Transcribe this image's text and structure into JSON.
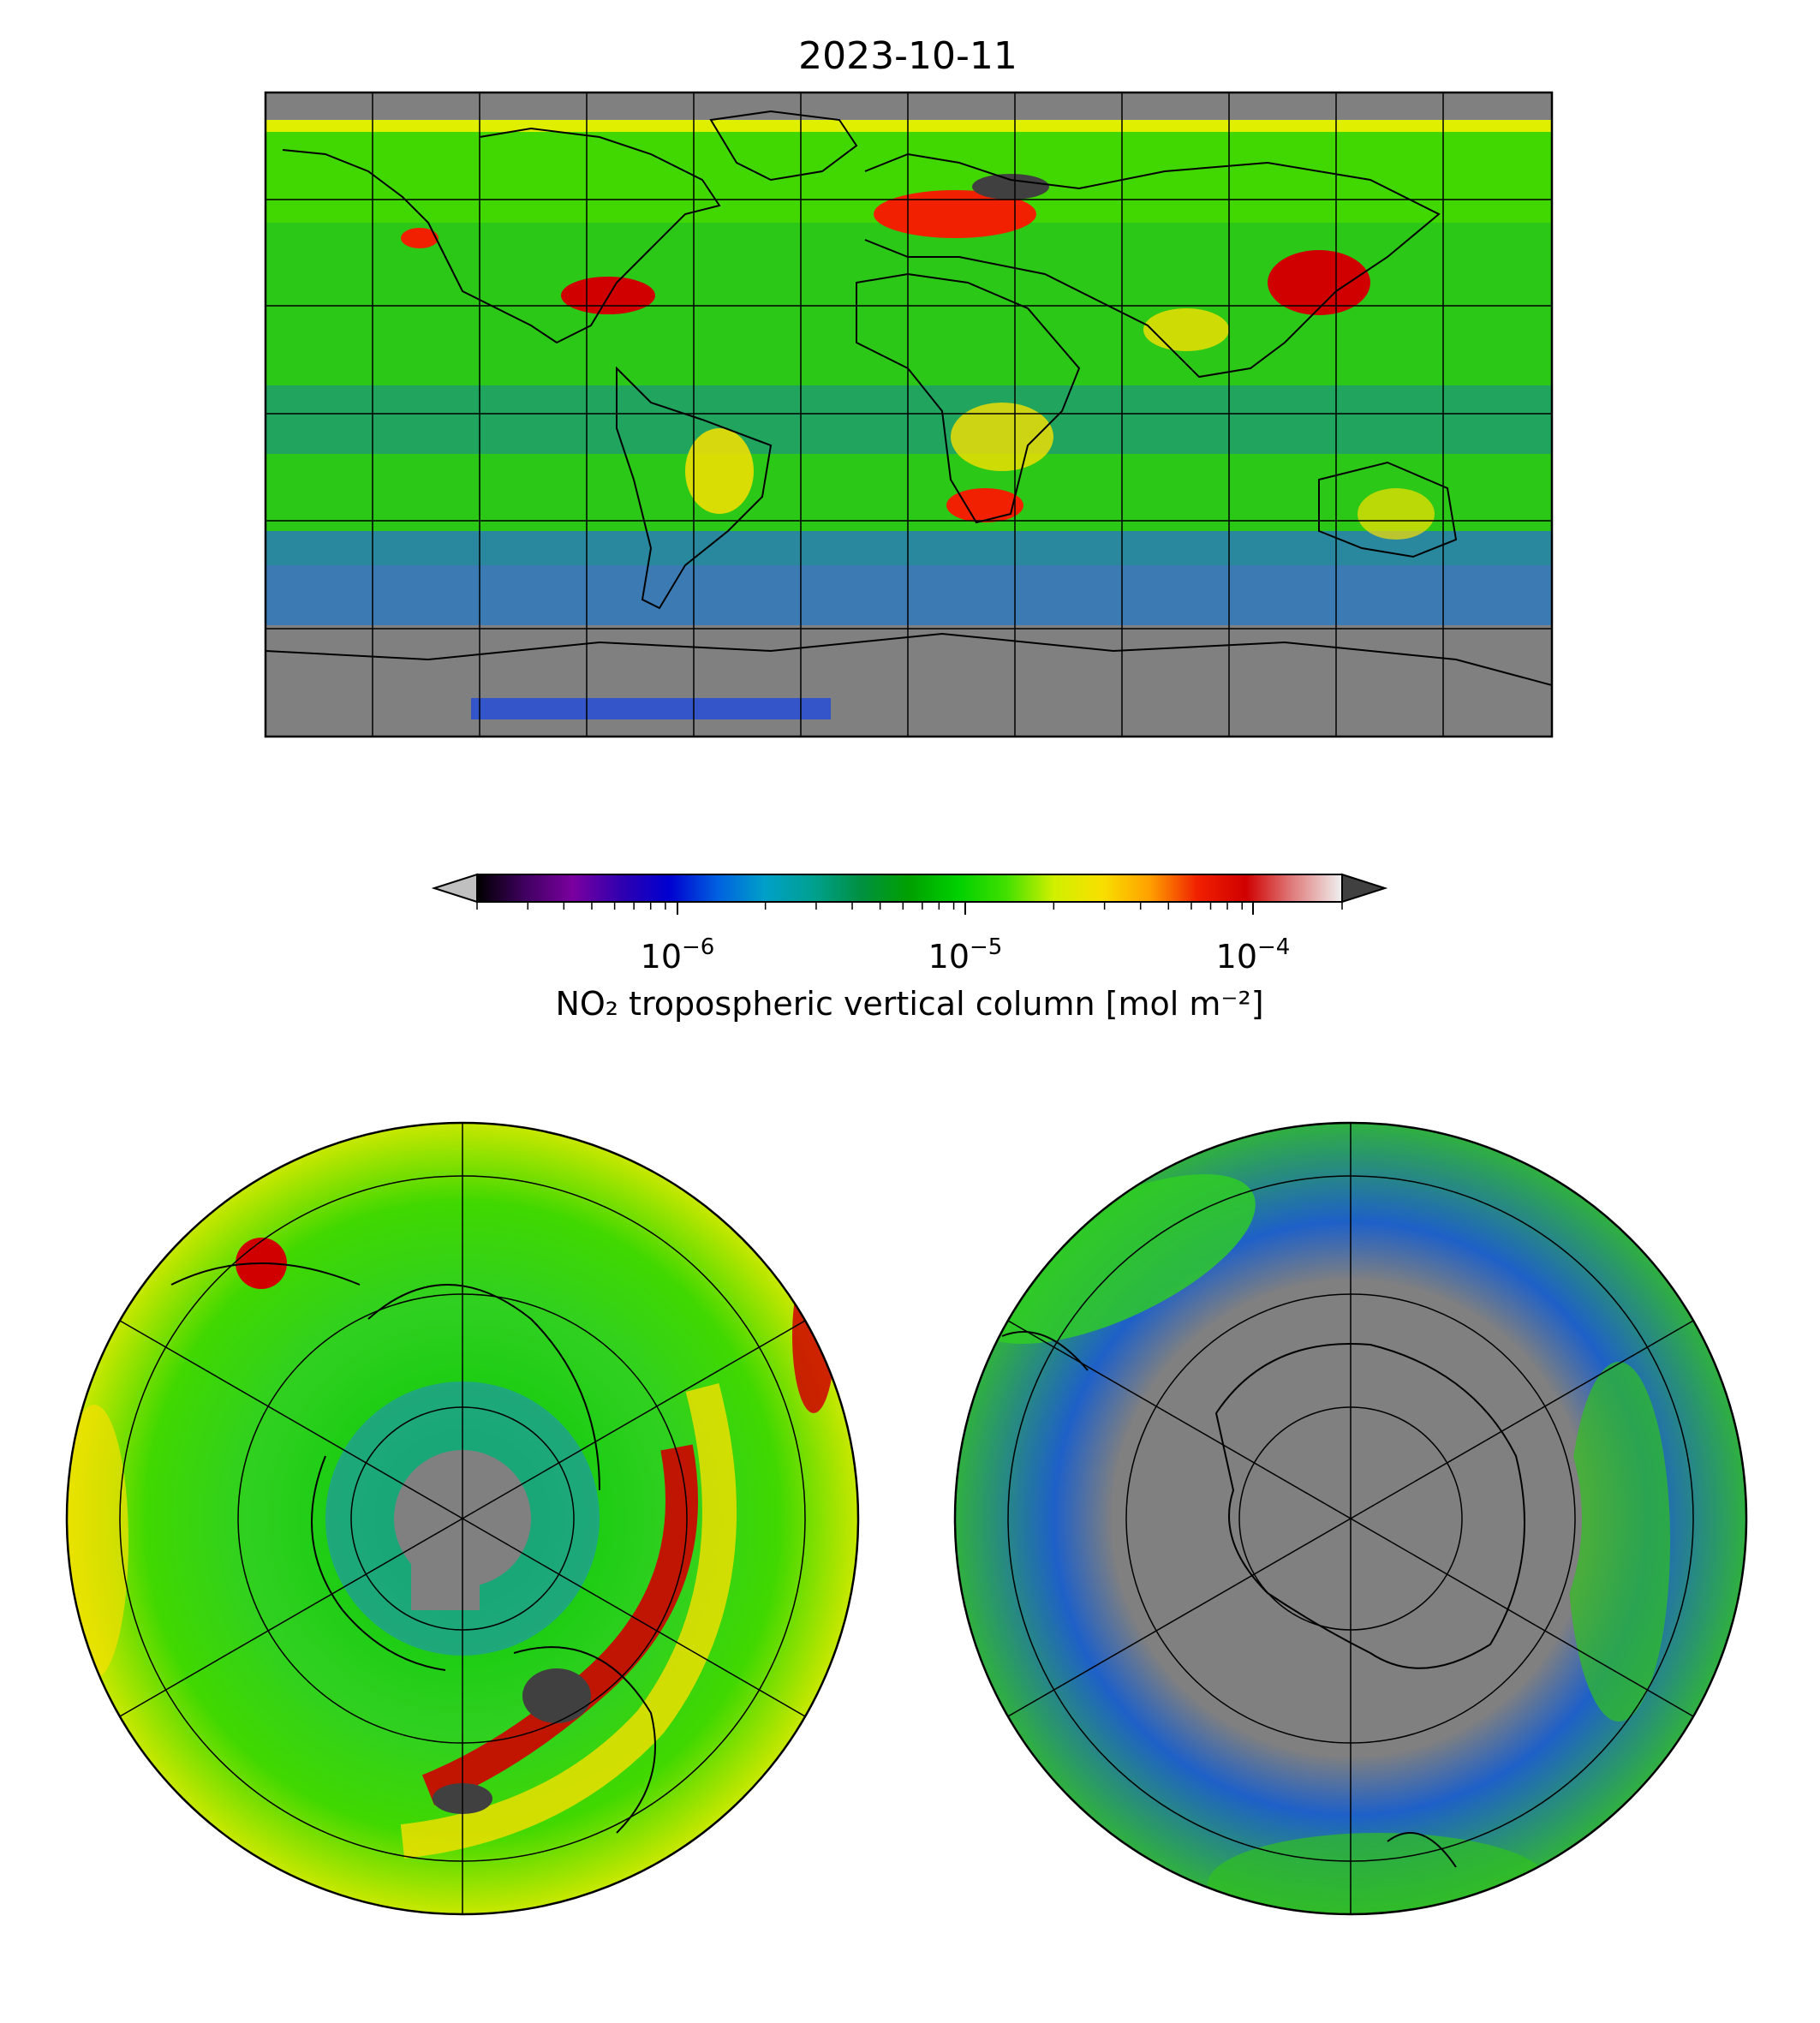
{
  "title": "2023-10-11",
  "colorbar": {
    "label": "NO₂ tropospheric vertical column [mol m⁻²]",
    "scale": "log",
    "range": [
      "2e-7",
      "2e-4"
    ],
    "ticks": [
      {
        "base": "10",
        "exp": "−6"
      },
      {
        "base": "10",
        "exp": "−5"
      },
      {
        "base": "10",
        "exp": "−4"
      }
    ],
    "extend_low_color": "#c0c0c0",
    "extend_high_color": "#404040",
    "stops": [
      "#000000",
      "#400060",
      "#7a00a0",
      "#3000b0",
      "#0000d0",
      "#0060e0",
      "#00a0c8",
      "#00a090",
      "#009040",
      "#00a000",
      "#00d000",
      "#40e000",
      "#d0f000",
      "#f8e000",
      "#ffa000",
      "#f02000",
      "#d00000",
      "#e08080",
      "#f0f0f0"
    ]
  },
  "maps": {
    "global_projection": "equirectangular",
    "north_polar_projection": "north polar stereographic",
    "south_polar_projection": "south polar stereographic",
    "nodata_color": "#808080",
    "gridlines": true,
    "coastlines": true
  }
}
